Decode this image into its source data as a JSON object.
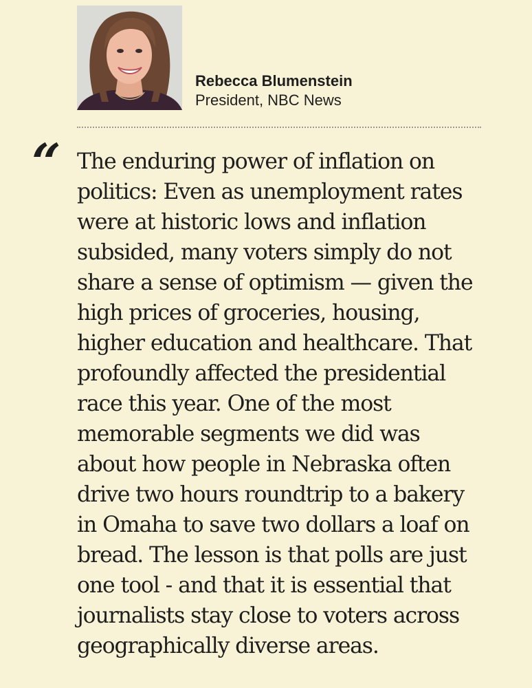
{
  "author": {
    "name": "Rebecca Blumenstein",
    "title": "President, NBC News",
    "photo_icon": "author-portrait"
  },
  "quote": {
    "mark": "“",
    "lines": [
      "The enduring power of inflation on",
      "politics: Even as unemployment rates",
      "were at historic lows and inflation",
      "subsided, many voters simply do not",
      "share a sense of optimism — given the",
      "high prices of groceries, housing,",
      "higher education and healthcare. That",
      "profoundly affected the presidential",
      "race this year. One of the most",
      "memorable segments we did was",
      "about how people in Nebraska often",
      "drive two hours roundtrip to a bakery",
      "in Omaha to save two dollars a loaf on",
      "bread. The lesson is that polls are just",
      "one tool - and that it is essential that",
      "journalists stay close to voters across",
      "geographically diverse areas."
    ]
  }
}
